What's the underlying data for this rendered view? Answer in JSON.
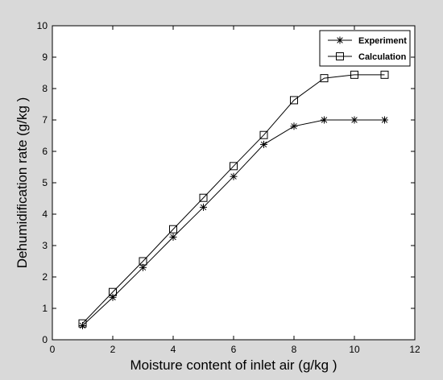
{
  "chart_data": {
    "type": "line",
    "xlabel": "Moisture content of inlet air (g/kg )",
    "ylabel": "Dehumidification rate (g/kg )",
    "xlim": [
      0,
      12
    ],
    "ylim": [
      0,
      10
    ],
    "xticks": [
      0,
      2,
      4,
      6,
      8,
      10,
      12
    ],
    "yticks": [
      0,
      1,
      2,
      3,
      4,
      5,
      6,
      7,
      8,
      9,
      10
    ],
    "grid": false,
    "legend": "top-right",
    "series": [
      {
        "name": "Experiment",
        "marker": "asterisk",
        "color": "#000000",
        "x": [
          1,
          2,
          3,
          4,
          5,
          6,
          7,
          8,
          9,
          10,
          11
        ],
        "y": [
          0.45,
          1.35,
          2.3,
          3.27,
          4.22,
          5.2,
          6.22,
          6.8,
          7.0,
          7.0,
          7.0
        ]
      },
      {
        "name": "Calculation",
        "marker": "square",
        "color": "#000000",
        "x": [
          1,
          2,
          3,
          4,
          5,
          6,
          7,
          8,
          9,
          10,
          11
        ],
        "y": [
          0.52,
          1.52,
          2.5,
          3.52,
          4.52,
          5.53,
          6.52,
          7.63,
          8.33,
          8.44,
          8.44
        ]
      }
    ]
  }
}
